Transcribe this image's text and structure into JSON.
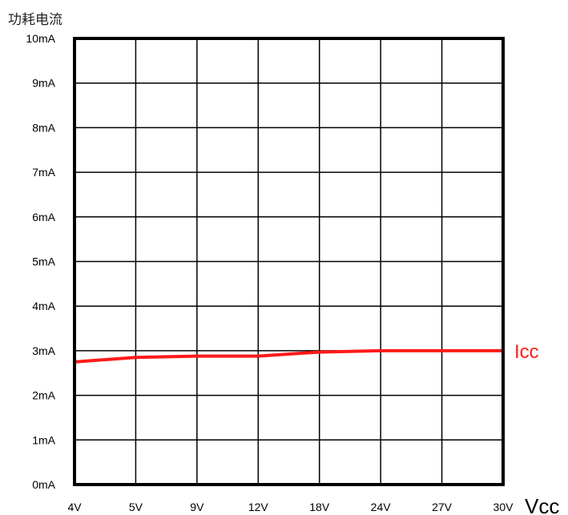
{
  "chart_data": {
    "type": "line",
    "title": "功耗电流",
    "xlabel": "Vcc",
    "ylabel": "",
    "categories": [
      "4V",
      "5V",
      "9V",
      "12V",
      "18V",
      "24V",
      "27V",
      "30V"
    ],
    "y_ticks": [
      "0mA",
      "1mA",
      "2mA",
      "3mA",
      "4mA",
      "5mA",
      "6mA",
      "7mA",
      "8mA",
      "9mA",
      "10mA"
    ],
    "ylim": [
      0,
      10
    ],
    "grid": true,
    "series": [
      {
        "name": "Icc",
        "color": "#ff1a1a",
        "values": [
          2.75,
          2.85,
          2.88,
          2.88,
          2.97,
          3.0,
          3.0,
          3.0
        ]
      }
    ]
  }
}
